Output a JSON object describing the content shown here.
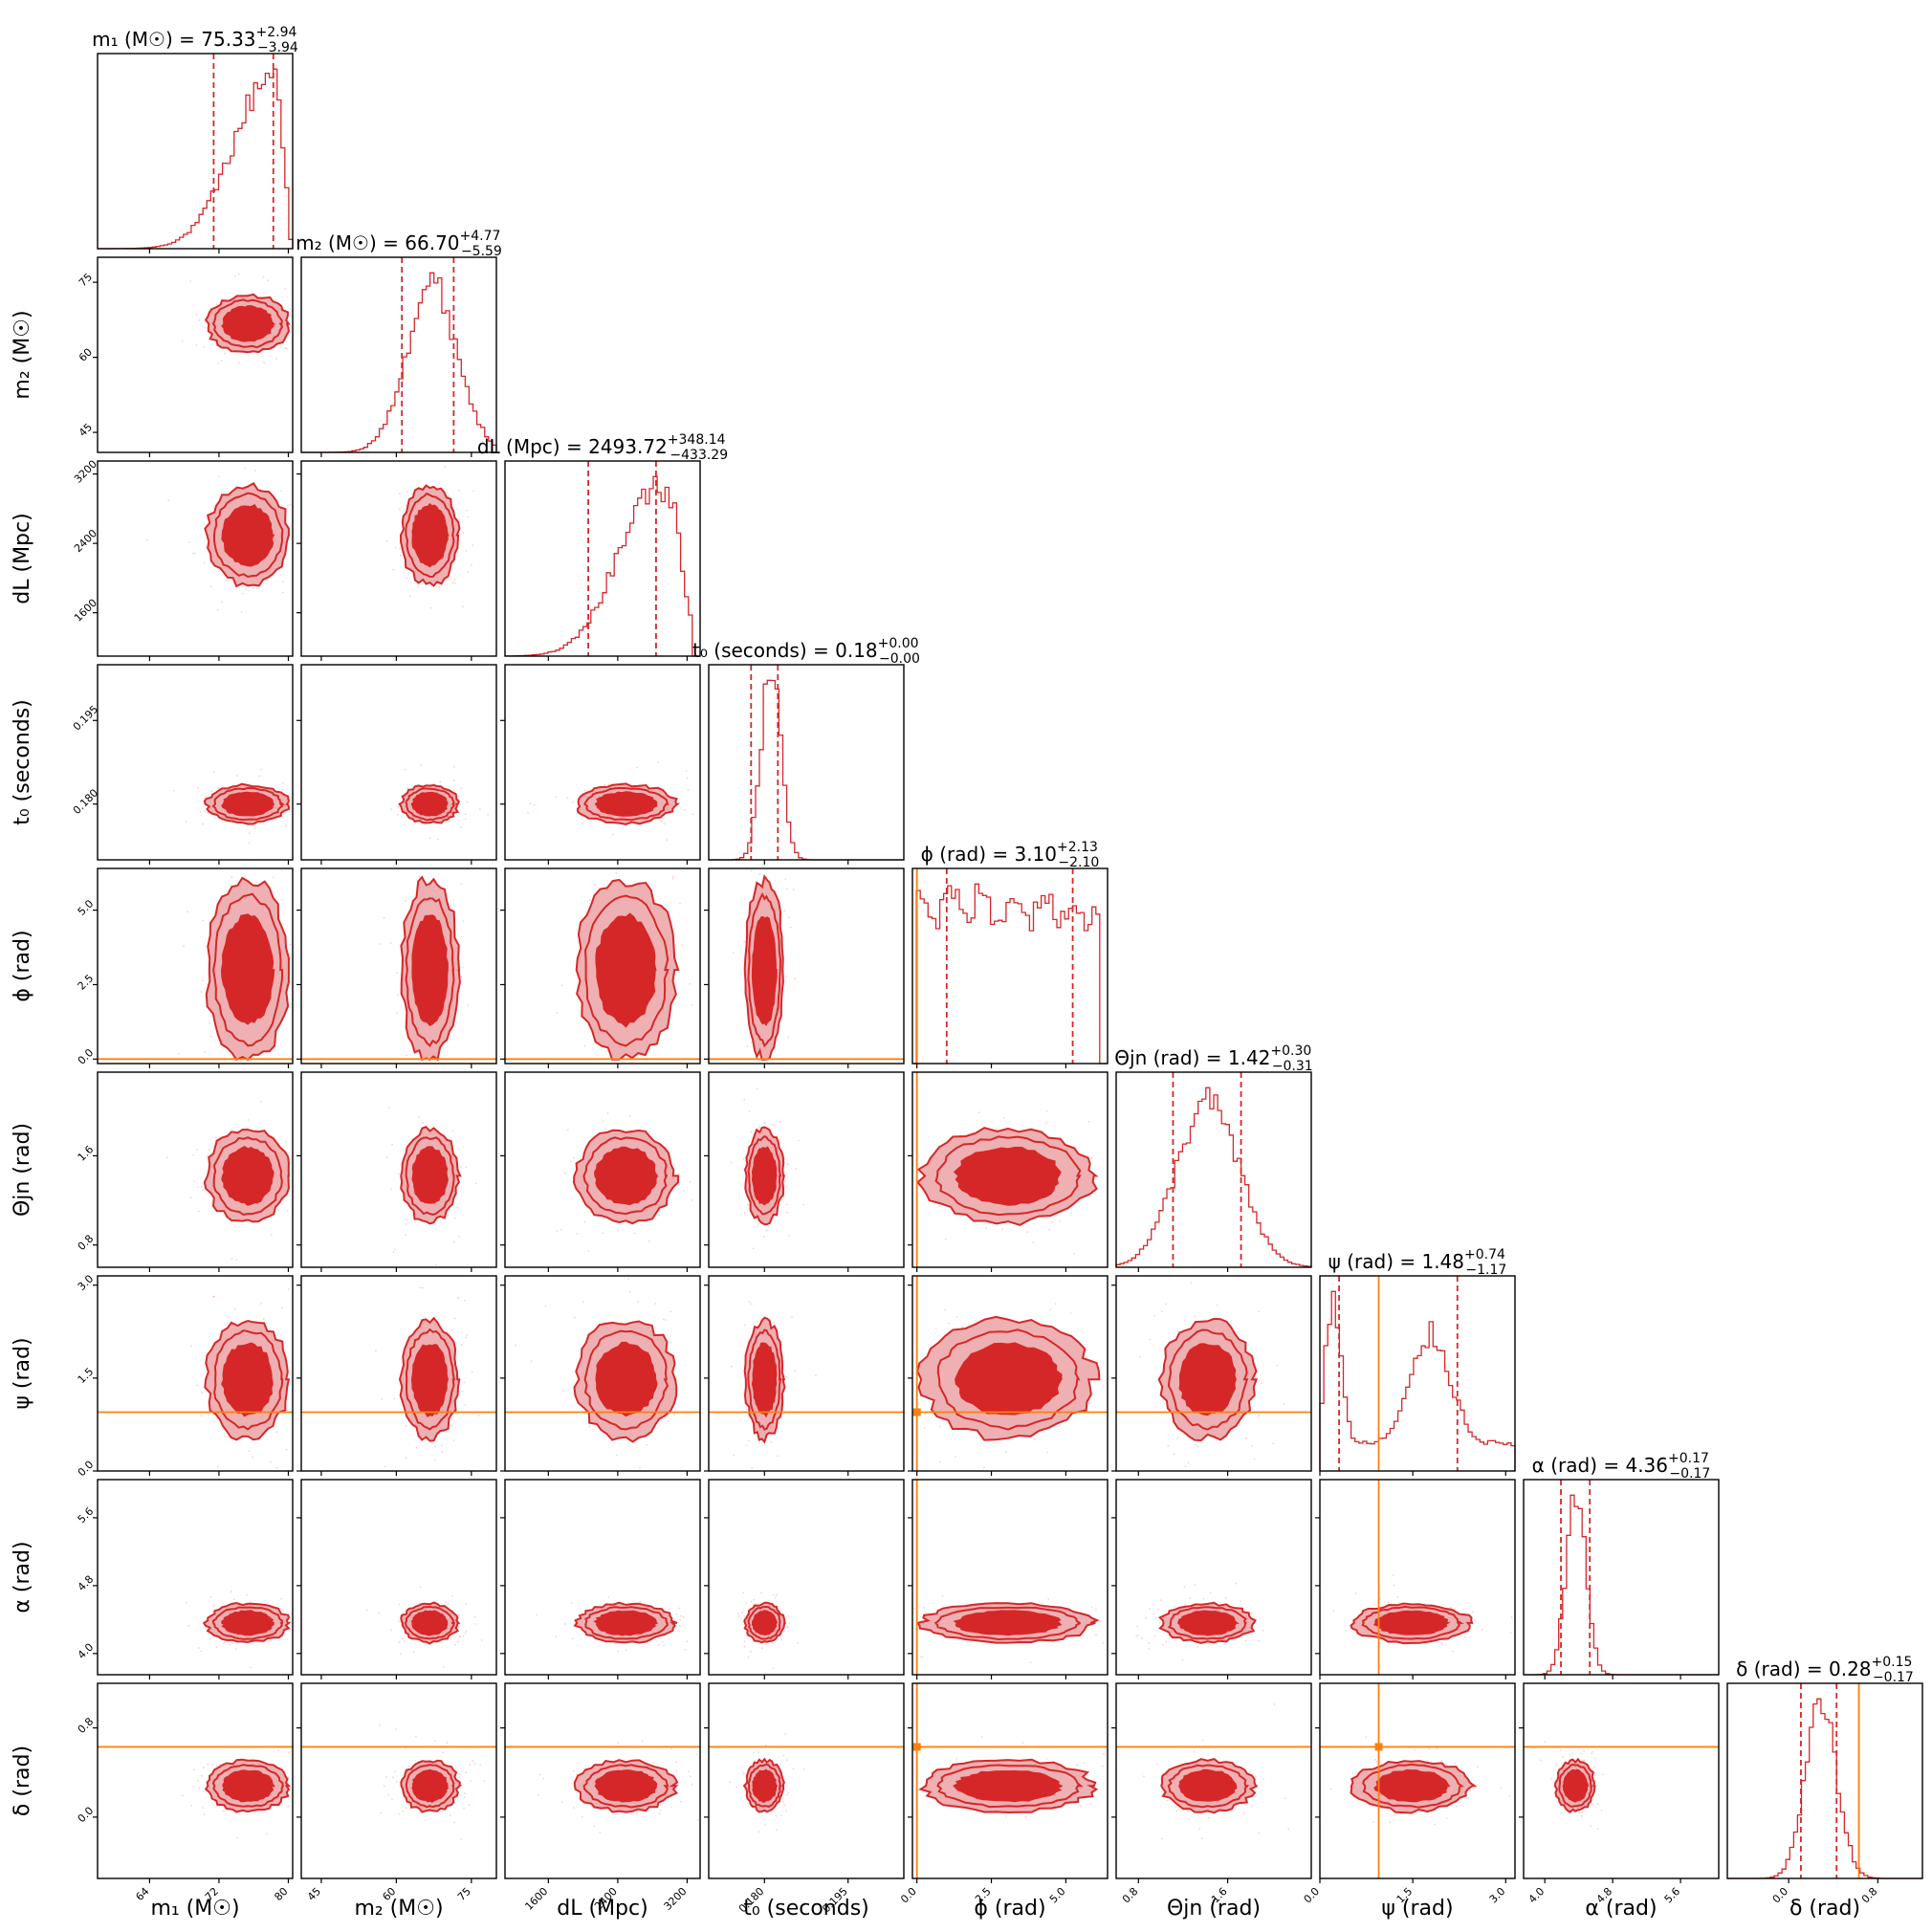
{
  "chart_data": {
    "type": "corner",
    "colors": {
      "posterior": "#d62728",
      "posterior_light": "#eeb0b2",
      "injection": "#ff7f0e"
    },
    "parameters": [
      {
        "key": "m1",
        "axis_label": "m₁ (M☉)",
        "title_main": "m₁ (M☉) = 75.33",
        "title_plus": "+2.94",
        "title_minus": "−3.94",
        "median": 75.33,
        "plus": 2.94,
        "minus": 3.94,
        "range": [
          58,
          80.5
        ],
        "ticks": [
          64,
          72,
          80
        ],
        "tick_labels": [
          "64",
          "72",
          "80"
        ],
        "injection": null
      },
      {
        "key": "m2",
        "axis_label": "m₂ (M☉)",
        "title_main": "m₂ (M☉) = 66.70",
        "title_plus": "+4.77",
        "title_minus": "−5.59",
        "median": 66.7,
        "plus": 4.77,
        "minus": 5.59,
        "range": [
          41,
          80
        ],
        "ticks": [
          45,
          60,
          75
        ],
        "tick_labels": [
          "45",
          "60",
          "75"
        ],
        "injection": null
      },
      {
        "key": "dL",
        "axis_label": "dL (Mpc)",
        "title_main": "dL (Mpc) = 2493.72",
        "title_plus": "+348.14",
        "title_minus": "−433.29",
        "median": 2493.72,
        "plus": 348.14,
        "minus": 433.29,
        "range": [
          1100,
          3350
        ],
        "ticks": [
          1600,
          2400,
          3200
        ],
        "tick_labels": [
          "1600",
          "2400",
          "3200"
        ],
        "injection": null
      },
      {
        "key": "t0",
        "axis_label": "t₀ (seconds)",
        "title_main": "t₀ (seconds) = 0.18",
        "title_plus": "+0.00",
        "title_minus": "−0.00",
        "median": 0.18,
        "plus": 0.0,
        "minus": 0.0,
        "range": [
          0.17,
          0.205
        ],
        "ticks": [
          0.18,
          0.195
        ],
        "tick_labels": [
          "0.180",
          "0.195"
        ],
        "injection": null
      },
      {
        "key": "phi",
        "axis_label": "ϕ (rad)",
        "title_main": "ϕ (rad) = 3.10",
        "title_plus": "+2.13",
        "title_minus": "−2.10",
        "median": 3.1,
        "plus": 2.13,
        "minus": 2.1,
        "range": [
          -0.15,
          6.4
        ],
        "ticks": [
          0.0,
          2.5,
          5.0
        ],
        "tick_labels": [
          "0.0",
          "2.5",
          "5.0"
        ],
        "injection": 0.0
      },
      {
        "key": "theta_jn",
        "axis_label": "Θjn (rad)",
        "title_main": "Θjn (rad) = 1.42",
        "title_plus": "+0.30",
        "title_minus": "−0.31",
        "median": 1.42,
        "plus": 0.3,
        "minus": 0.31,
        "range": [
          0.6,
          2.35
        ],
        "ticks": [
          0.8,
          1.6
        ],
        "tick_labels": [
          "0.8",
          "1.6"
        ],
        "injection": null
      },
      {
        "key": "psi",
        "axis_label": "ψ (rad)",
        "title_main": "ψ (rad) = 1.48",
        "title_plus": "+0.74",
        "title_minus": "−1.17",
        "median": 1.48,
        "plus": 0.74,
        "minus": 1.17,
        "range": [
          0.0,
          3.15
        ],
        "ticks": [
          0.0,
          1.5,
          3.0
        ],
        "tick_labels": [
          "0.0",
          "1.5",
          "3.0"
        ],
        "injection": 0.95
      },
      {
        "key": "alpha",
        "axis_label": "α (rad)",
        "title_main": "α (rad) = 4.36",
        "title_plus": "+0.17",
        "title_minus": "−0.17",
        "median": 4.36,
        "plus": 0.17,
        "minus": 0.17,
        "range": [
          3.75,
          6.05
        ],
        "ticks": [
          4.0,
          4.8,
          5.6
        ],
        "tick_labels": [
          "4.0",
          "4.8",
          "5.6"
        ],
        "injection": null
      },
      {
        "key": "delta",
        "axis_label": "δ (rad)",
        "title_main": "δ (rad) = 0.28",
        "title_plus": "+0.15",
        "title_minus": "−0.17",
        "median": 0.28,
        "plus": 0.15,
        "minus": 0.17,
        "range": [
          -0.55,
          1.2
        ],
        "ticks": [
          0.0,
          0.8
        ],
        "tick_labels": [
          "0.0",
          "0.8"
        ],
        "injection": 0.63
      }
    ]
  }
}
